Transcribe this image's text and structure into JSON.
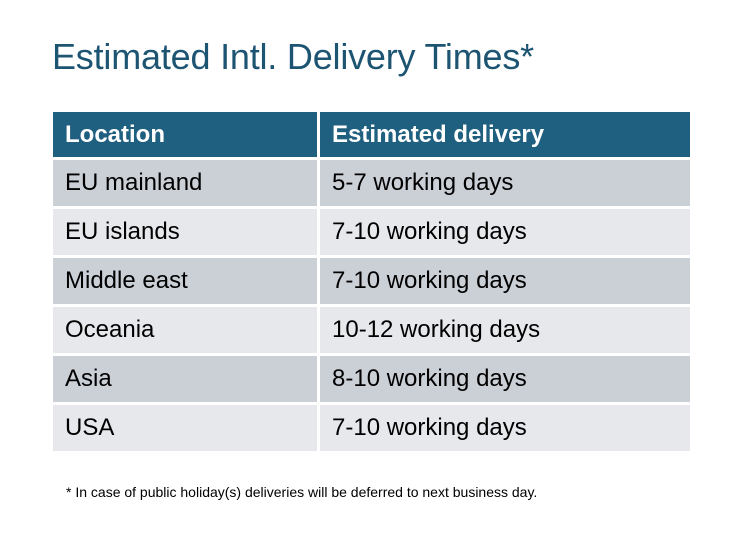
{
  "title": "Estimated Intl. Delivery Times*",
  "table": {
    "headers": [
      "Location",
      "Estimated delivery"
    ],
    "rows": [
      [
        "EU mainland",
        "5-7 working days"
      ],
      [
        "EU islands",
        "7-10 working days"
      ],
      [
        "Middle east",
        "7-10 working days"
      ],
      [
        "Oceania",
        "10-12 working days"
      ],
      [
        "Asia",
        "8-10 working days"
      ],
      [
        "USA",
        "7-10 working days"
      ]
    ]
  },
  "footnote": "* In case of public holiday(s) deliveries will be deferred to next business day.",
  "colors": {
    "title": "#1d5472",
    "header_bg": "#1f5f7f",
    "row_odd": "#cbcfd6",
    "row_even": "#e6e8eb"
  }
}
